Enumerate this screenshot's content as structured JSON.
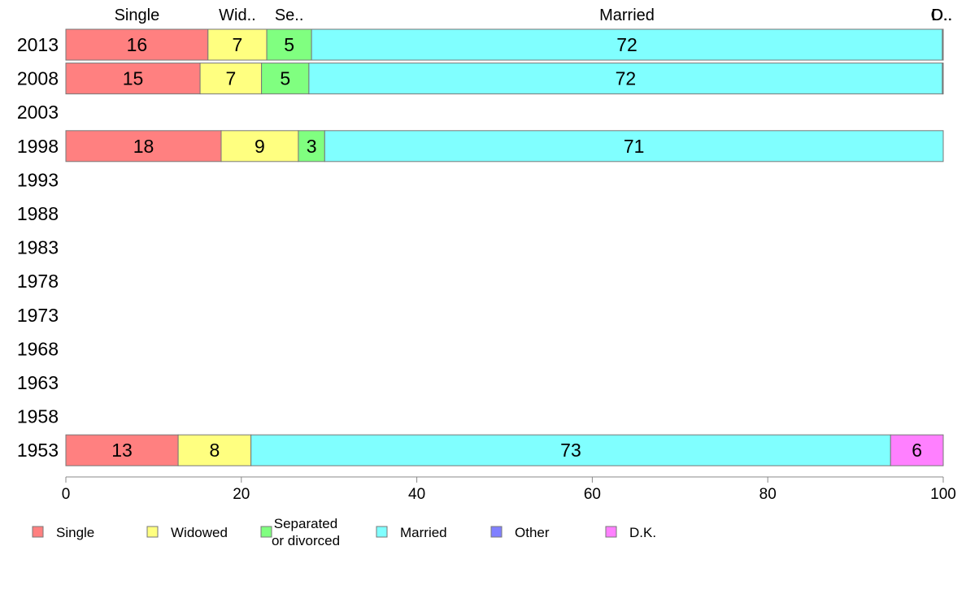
{
  "chart_data": {
    "type": "bar",
    "orientation": "horizontal",
    "stacked": true,
    "percent_stacked": true,
    "xlim": [
      0,
      100
    ],
    "x_ticks": [
      "0",
      "20",
      "40",
      "60",
      "80",
      "100"
    ],
    "grid": false,
    "legend_position": "bottom",
    "categories": [
      "2013",
      "2008",
      "2003",
      "1998",
      "1993",
      "1988",
      "1983",
      "1978",
      "1973",
      "1968",
      "1963",
      "1958",
      "1953"
    ],
    "header_labels": [
      "Single",
      "Wid..",
      "Se..",
      "Married",
      "O..",
      "D.."
    ],
    "series": [
      {
        "name": "Single",
        "color": "#ff8080",
        "values": [
          16.2,
          15.3,
          null,
          17.7,
          null,
          null,
          null,
          null,
          null,
          null,
          null,
          null,
          12.8
        ]
      },
      {
        "name": "Widowed",
        "color": "#ffff80",
        "values": [
          6.7,
          7.0,
          null,
          8.8,
          null,
          null,
          null,
          null,
          null,
          null,
          null,
          null,
          8.3
        ]
      },
      {
        "name": "Separated\nor divorced",
        "color": "#80ff80",
        "values": [
          5.1,
          5.4,
          null,
          3.0,
          null,
          null,
          null,
          null,
          null,
          null,
          null,
          null,
          0
        ]
      },
      {
        "name": "Married",
        "color": "#80ffff",
        "values": [
          71.9,
          72.2,
          null,
          70.5,
          null,
          null,
          null,
          null,
          null,
          null,
          null,
          null,
          72.9
        ]
      },
      {
        "name": "Other",
        "color": "#8080ff",
        "values": [
          0.05,
          0.05,
          null,
          0,
          null,
          null,
          null,
          null,
          null,
          null,
          null,
          null,
          0
        ]
      },
      {
        "name": "D.K.",
        "color": "#ff80ff",
        "values": [
          0.05,
          0.05,
          null,
          0,
          null,
          null,
          null,
          null,
          null,
          null,
          null,
          null,
          6.0
        ]
      }
    ],
    "data_labels": [
      [
        "16",
        "7",
        "5",
        "72",
        "",
        ""
      ],
      [
        "15",
        "7",
        "5",
        "72",
        "",
        ""
      ],
      [
        "",
        "",
        "",
        "",
        "",
        ""
      ],
      [
        "18",
        "9",
        "3",
        "71",
        "",
        ""
      ],
      [
        "",
        "",
        "",
        "",
        "",
        ""
      ],
      [
        "",
        "",
        "",
        "",
        "",
        ""
      ],
      [
        "",
        "",
        "",
        "",
        "",
        ""
      ],
      [
        "",
        "",
        "",
        "",
        "",
        ""
      ],
      [
        "",
        "",
        "",
        "",
        "",
        ""
      ],
      [
        "",
        "",
        "",
        "",
        "",
        ""
      ],
      [
        "",
        "",
        "",
        "",
        "",
        ""
      ],
      [
        "",
        "",
        "",
        "",
        "",
        ""
      ],
      [
        "13",
        "8",
        "",
        "73",
        "",
        "6"
      ]
    ]
  }
}
